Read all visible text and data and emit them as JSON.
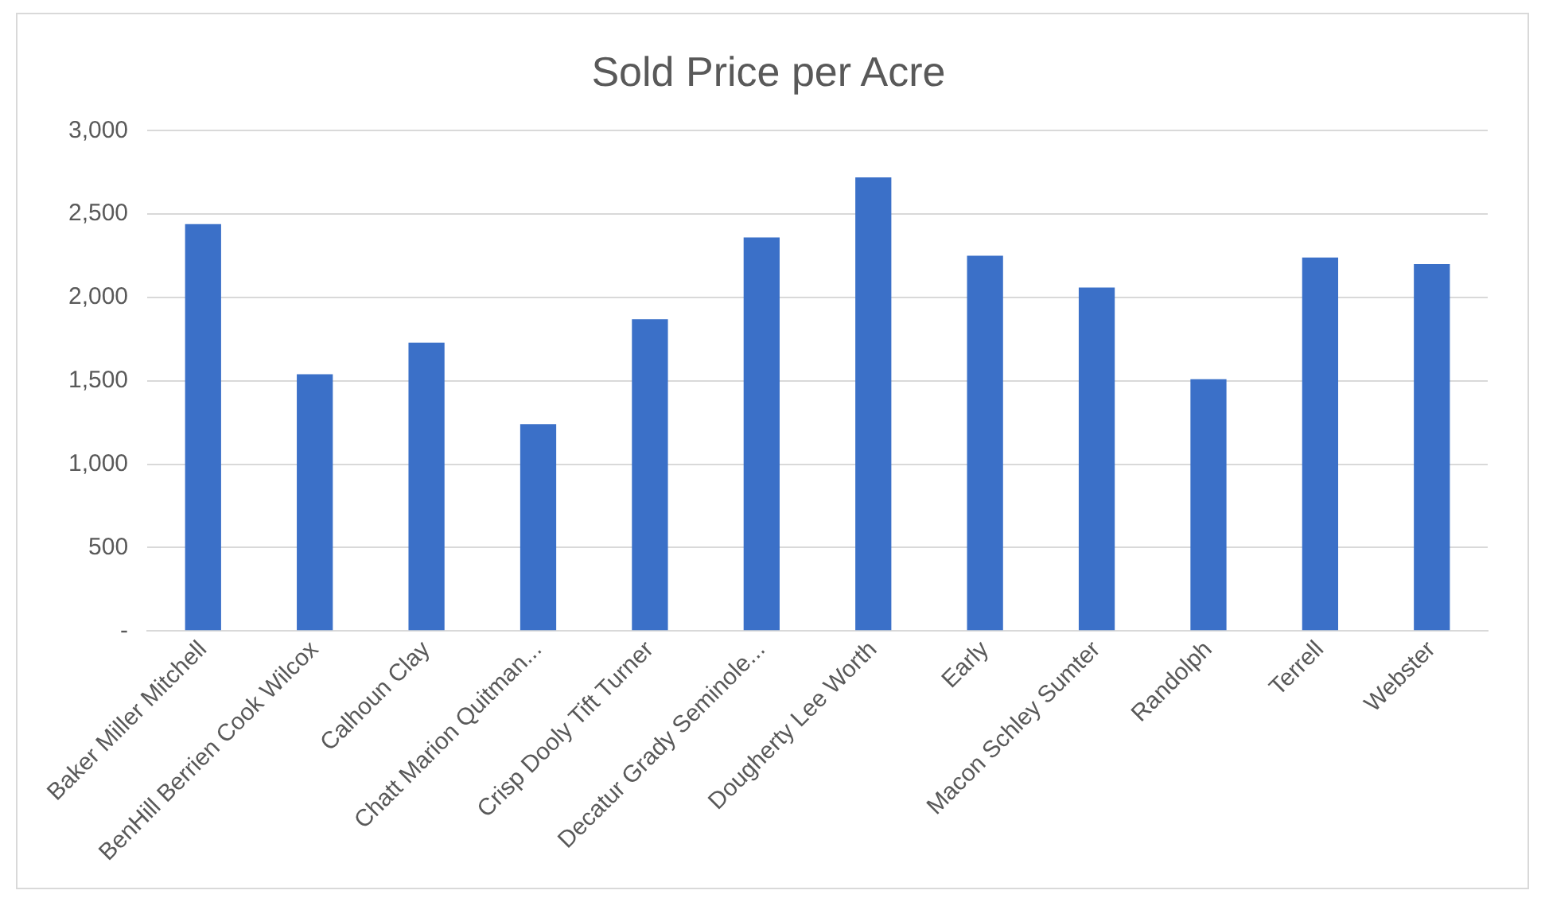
{
  "chart_data": {
    "type": "bar",
    "title": "Sold Price per Acre",
    "categories": [
      "Baker Miller Mitchell",
      "BenHill Berrien Cook Wilcox",
      "Calhoun Clay",
      "Chatt Marion Quitman...",
      "Crisp Dooly Tift Turner",
      "Decatur Grady Seminole...",
      "Dougherty Lee Worth",
      "Early",
      "Macon Schley Sumter",
      "Randolph",
      "Terrell",
      "Webster"
    ],
    "values": [
      2440,
      1540,
      1730,
      1240,
      1870,
      2360,
      2720,
      2250,
      2060,
      1510,
      2240,
      2200
    ],
    "color": "#3b70c8",
    "ylim": [
      0,
      3000
    ],
    "yticks": [
      {
        "value": 0,
        "label": "-"
      },
      {
        "value": 500,
        "label": "500"
      },
      {
        "value": 1000,
        "label": "1,000"
      },
      {
        "value": 1500,
        "label": "1,500"
      },
      {
        "value": 2000,
        "label": "2,000"
      },
      {
        "value": 2500,
        "label": "2,500"
      },
      {
        "value": 3000,
        "label": "3,000"
      }
    ],
    "grid": "y",
    "legend": false
  }
}
